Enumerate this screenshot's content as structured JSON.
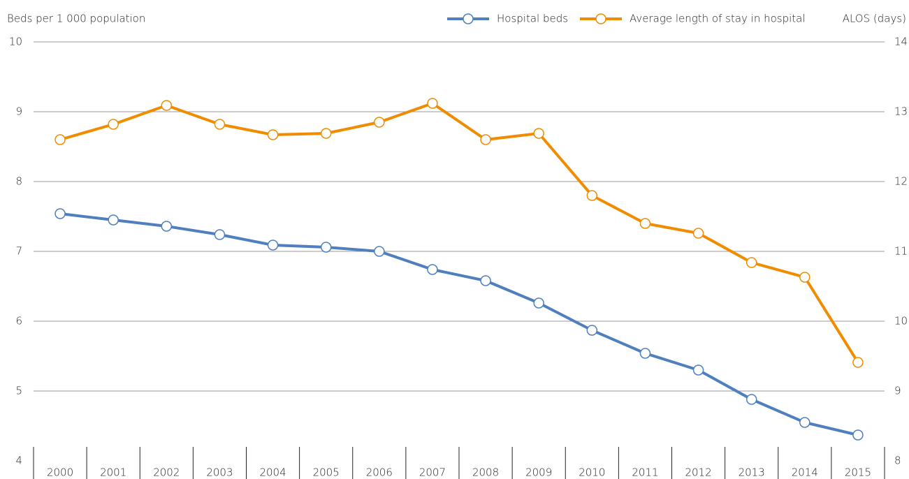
{
  "chart_data": {
    "type": "line",
    "y_label": "Beds per 1 000 population",
    "y2_label": "ALOS (days)",
    "categories": [
      "2000",
      "2001",
      "2002",
      "2003",
      "2004",
      "2005",
      "2006",
      "2007",
      "2008",
      "2009",
      "2010",
      "2011",
      "2012",
      "2013",
      "2014",
      "2015"
    ],
    "series": [
      {
        "name": "Hospital beds",
        "color": "#4f7fbd",
        "values": [
          7.54,
          7.45,
          7.36,
          7.24,
          7.09,
          7.06,
          7.0,
          6.74,
          6.58,
          6.26,
          5.87,
          5.54,
          5.3,
          4.88,
          4.55,
          4.37
        ]
      },
      {
        "name": "Average length of stay in hospital",
        "color": "#f08c00",
        "axis": "y2",
        "values": [
          12.6,
          12.82,
          13.09,
          12.82,
          12.67,
          12.69,
          12.85,
          13.12,
          12.6,
          12.69,
          11.8,
          11.4,
          11.26,
          10.84,
          10.63,
          9.41
        ]
      }
    ],
    "ylim": [
      4,
      10
    ],
    "yticks": [
      4,
      5,
      6,
      7,
      8,
      9,
      10
    ],
    "y2lim": [
      8,
      14
    ],
    "y2ticks": [
      8,
      9,
      10,
      11,
      12,
      13,
      14
    ],
    "grid": true,
    "legend": "top-right"
  }
}
